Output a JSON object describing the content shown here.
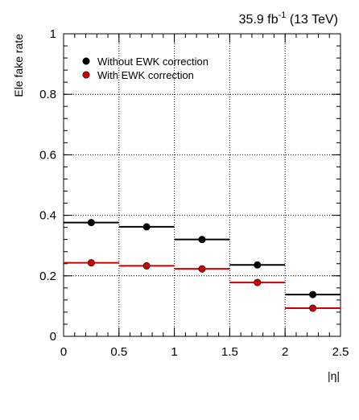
{
  "chart_data": {
    "type": "scatter",
    "header": {
      "lumi_value": "35.9 fb",
      "lumi_exponent": "-1",
      "energy": " (13 TeV)"
    },
    "xlabel": "|η|",
    "ylabel": "Ele fake rate",
    "xlim": [
      0,
      2.5
    ],
    "ylim": [
      0,
      1
    ],
    "x_ticks": [
      "0",
      "0.5",
      "1",
      "1.5",
      "2",
      "2.5"
    ],
    "y_ticks": [
      "0",
      "0.2",
      "0.4",
      "0.6",
      "0.8",
      "1"
    ],
    "grid": true,
    "legend_position": "top-left",
    "bins": [
      [
        0,
        0.5
      ],
      [
        0.5,
        1.0
      ],
      [
        1.0,
        1.5
      ],
      [
        1.5,
        2.0
      ],
      [
        2.0,
        2.5
      ]
    ],
    "series": [
      {
        "name": "Without EWK correction",
        "color": "#000000",
        "x": [
          0.25,
          0.75,
          1.25,
          1.75,
          2.25
        ],
        "y": [
          0.376,
          0.362,
          0.32,
          0.236,
          0.138
        ]
      },
      {
        "name": "With EWK correction",
        "color": "#cc0000",
        "x": [
          0.25,
          0.75,
          1.25,
          1.75,
          2.25
        ],
        "y": [
          0.243,
          0.233,
          0.223,
          0.178,
          0.093
        ]
      }
    ]
  }
}
